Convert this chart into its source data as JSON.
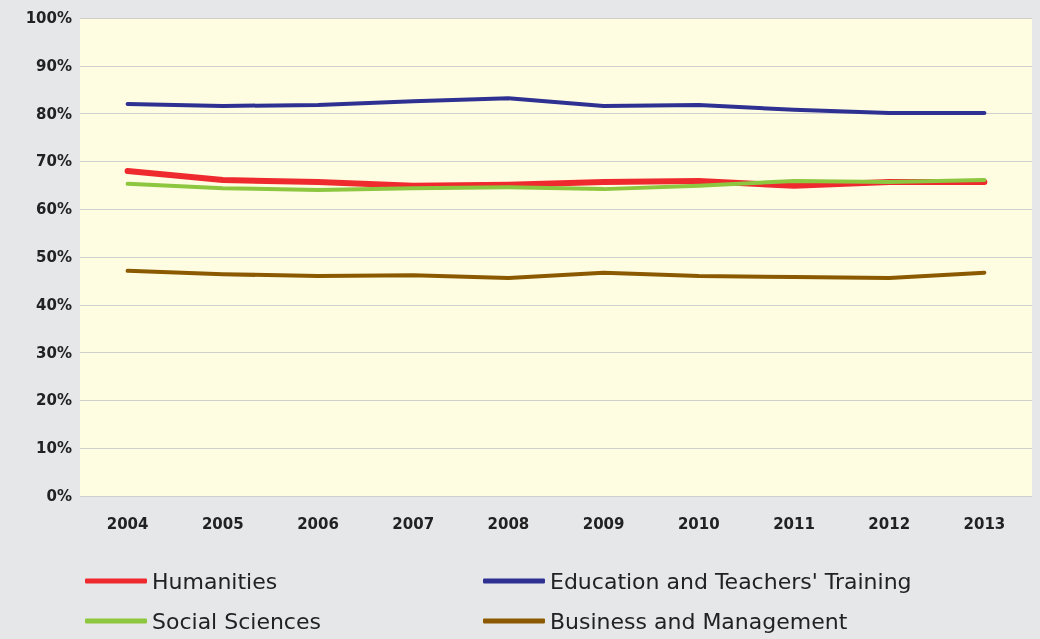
{
  "chart_data": {
    "type": "line",
    "categories": [
      "2004",
      "2005",
      "2006",
      "2007",
      "2008",
      "2009",
      "2010",
      "2011",
      "2012",
      "2013"
    ],
    "series": [
      {
        "name": "Humanities",
        "color": "#ee2a2f",
        "values": [
          68.0,
          66.1,
          65.7,
          64.9,
          65.1,
          65.7,
          65.9,
          64.9,
          65.7,
          65.7
        ]
      },
      {
        "name": "Education and Teachers' Training",
        "color": "#2e3192",
        "values": [
          82.0,
          81.6,
          81.8,
          82.6,
          83.2,
          81.6,
          81.8,
          80.8,
          80.1,
          80.1
        ]
      },
      {
        "name": "Social Sciences",
        "color": "#8dc63f",
        "values": [
          65.3,
          64.4,
          64.0,
          64.4,
          64.6,
          64.2,
          64.9,
          65.9,
          65.7,
          66.1
        ]
      },
      {
        "name": "Business and Management",
        "color": "#8b5a00",
        "values": [
          47.1,
          46.4,
          46.0,
          46.2,
          45.6,
          46.7,
          46.0,
          45.8,
          45.6,
          46.7
        ]
      }
    ],
    "ylim": [
      0,
      100
    ],
    "yticks": [
      {
        "value": 0,
        "label": "0%"
      },
      {
        "value": 10,
        "label": "10%"
      },
      {
        "value": 20,
        "label": "20%"
      },
      {
        "value": 30,
        "label": "30%"
      },
      {
        "value": 40,
        "label": "40%"
      },
      {
        "value": 50,
        "label": "50%"
      },
      {
        "value": 60,
        "label": "60%"
      },
      {
        "value": 70,
        "label": "70%"
      },
      {
        "value": 80,
        "label": "80%"
      },
      {
        "value": 90,
        "label": "90%"
      },
      {
        "value": 100,
        "label": "100%"
      }
    ],
    "grid": "y",
    "legend": "bottom",
    "marker": "none",
    "line_style": "solid"
  }
}
